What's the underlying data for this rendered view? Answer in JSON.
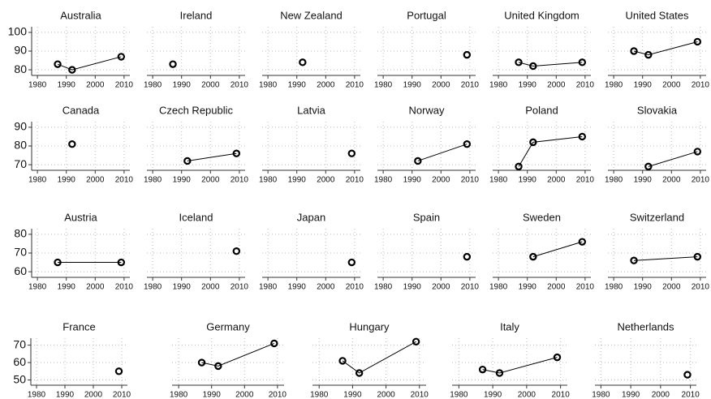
{
  "chart_data": [
    {
      "type": "line",
      "title": "Australia",
      "x": [
        1987,
        1992,
        2009
      ],
      "values": [
        83,
        80,
        87
      ],
      "xlim": [
        1978,
        2012
      ],
      "ylim": [
        77,
        103
      ],
      "xticks": [
        1980,
        1990,
        2000,
        2010
      ],
      "yticks": [
        80,
        90,
        100
      ],
      "grid": true,
      "color": "#000000"
    },
    {
      "type": "line",
      "title": "Ireland",
      "x": [
        1987
      ],
      "values": [
        83
      ],
      "xlim": [
        1978,
        2012
      ],
      "ylim": [
        77,
        103
      ],
      "xticks": [
        1980,
        1990,
        2000,
        2010
      ],
      "yticks": [
        80,
        90,
        100
      ],
      "grid": true,
      "color": "#000000"
    },
    {
      "type": "line",
      "title": "New Zealand",
      "x": [
        1992
      ],
      "values": [
        84
      ],
      "xlim": [
        1978,
        2012
      ],
      "ylim": [
        77,
        103
      ],
      "xticks": [
        1980,
        1990,
        2000,
        2010
      ],
      "yticks": [
        80,
        90,
        100
      ],
      "grid": true,
      "color": "#000000"
    },
    {
      "type": "line",
      "title": "Portugal",
      "x": [
        2009
      ],
      "values": [
        88
      ],
      "xlim": [
        1978,
        2012
      ],
      "ylim": [
        77,
        103
      ],
      "xticks": [
        1980,
        1990,
        2000,
        2010
      ],
      "yticks": [
        80,
        90,
        100
      ],
      "grid": true,
      "color": "#000000"
    },
    {
      "type": "line",
      "title": "United Kingdom",
      "x": [
        1987,
        1992,
        2009
      ],
      "values": [
        84,
        82,
        84
      ],
      "xlim": [
        1978,
        2012
      ],
      "ylim": [
        77,
        103
      ],
      "xticks": [
        1980,
        1990,
        2000,
        2010
      ],
      "yticks": [
        80,
        90,
        100
      ],
      "grid": true,
      "color": "#000000"
    },
    {
      "type": "line",
      "title": "United States",
      "x": [
        1987,
        1992,
        2009
      ],
      "values": [
        90,
        88,
        95
      ],
      "xlim": [
        1978,
        2012
      ],
      "ylim": [
        77,
        103
      ],
      "xticks": [
        1980,
        1990,
        2000,
        2010
      ],
      "yticks": [
        80,
        90,
        100
      ],
      "grid": true,
      "color": "#000000"
    },
    {
      "type": "line",
      "title": "Canada",
      "x": [
        1992
      ],
      "values": [
        81
      ],
      "xlim": [
        1978,
        2012
      ],
      "ylim": [
        67,
        93
      ],
      "xticks": [
        1980,
        1990,
        2000,
        2010
      ],
      "yticks": [
        70,
        80,
        90
      ],
      "grid": true,
      "color": "#000000"
    },
    {
      "type": "line",
      "title": "Czech Republic",
      "x": [
        1992,
        2009
      ],
      "values": [
        72,
        76
      ],
      "xlim": [
        1978,
        2012
      ],
      "ylim": [
        67,
        93
      ],
      "xticks": [
        1980,
        1990,
        2000,
        2010
      ],
      "yticks": [
        70,
        80,
        90
      ],
      "grid": true,
      "color": "#000000"
    },
    {
      "type": "line",
      "title": "Latvia",
      "x": [
        2009
      ],
      "values": [
        76
      ],
      "xlim": [
        1978,
        2012
      ],
      "ylim": [
        67,
        93
      ],
      "xticks": [
        1980,
        1990,
        2000,
        2010
      ],
      "yticks": [
        70,
        80,
        90
      ],
      "grid": true,
      "color": "#000000"
    },
    {
      "type": "line",
      "title": "Norway",
      "x": [
        1992,
        2009
      ],
      "values": [
        72,
        81
      ],
      "xlim": [
        1978,
        2012
      ],
      "ylim": [
        67,
        93
      ],
      "xticks": [
        1980,
        1990,
        2000,
        2010
      ],
      "yticks": [
        70,
        80,
        90
      ],
      "grid": true,
      "color": "#000000"
    },
    {
      "type": "line",
      "title": "Poland",
      "x": [
        1987,
        1992,
        2009
      ],
      "values": [
        69,
        82,
        85
      ],
      "xlim": [
        1978,
        2012
      ],
      "ylim": [
        67,
        93
      ],
      "xticks": [
        1980,
        1990,
        2000,
        2010
      ],
      "yticks": [
        70,
        80,
        90
      ],
      "grid": true,
      "color": "#000000"
    },
    {
      "type": "line",
      "title": "Slovakia",
      "x": [
        1992,
        2009
      ],
      "values": [
        69,
        77
      ],
      "xlim": [
        1978,
        2012
      ],
      "ylim": [
        67,
        93
      ],
      "xticks": [
        1980,
        1990,
        2000,
        2010
      ],
      "yticks": [
        70,
        80,
        90
      ],
      "grid": true,
      "color": "#000000"
    },
    {
      "type": "line",
      "title": "Austria",
      "x": [
        1987,
        2009
      ],
      "values": [
        65,
        65
      ],
      "xlim": [
        1978,
        2012
      ],
      "ylim": [
        57,
        83
      ],
      "xticks": [
        1980,
        1990,
        2000,
        2010
      ],
      "yticks": [
        60,
        70,
        80
      ],
      "grid": true,
      "color": "#000000"
    },
    {
      "type": "line",
      "title": "Iceland",
      "x": [
        2009
      ],
      "values": [
        71
      ],
      "xlim": [
        1978,
        2012
      ],
      "ylim": [
        57,
        83
      ],
      "xticks": [
        1980,
        1990,
        2000,
        2010
      ],
      "yticks": [
        60,
        70,
        80
      ],
      "grid": true,
      "color": "#000000"
    },
    {
      "type": "line",
      "title": "Japan",
      "x": [
        2009
      ],
      "values": [
        65
      ],
      "xlim": [
        1978,
        2012
      ],
      "ylim": [
        57,
        83
      ],
      "xticks": [
        1980,
        1990,
        2000,
        2010
      ],
      "yticks": [
        60,
        70,
        80
      ],
      "grid": true,
      "color": "#000000"
    },
    {
      "type": "line",
      "title": "Spain",
      "x": [
        2009
      ],
      "values": [
        68
      ],
      "xlim": [
        1978,
        2012
      ],
      "ylim": [
        57,
        83
      ],
      "xticks": [
        1980,
        1990,
        2000,
        2010
      ],
      "yticks": [
        60,
        70,
        80
      ],
      "grid": true,
      "color": "#000000"
    },
    {
      "type": "line",
      "title": "Sweden",
      "x": [
        1992,
        2009
      ],
      "values": [
        68,
        76
      ],
      "xlim": [
        1978,
        2012
      ],
      "ylim": [
        57,
        83
      ],
      "xticks": [
        1980,
        1990,
        2000,
        2010
      ],
      "yticks": [
        60,
        70,
        80
      ],
      "grid": true,
      "color": "#000000"
    },
    {
      "type": "line",
      "title": "Switzerland",
      "x": [
        1987,
        2009
      ],
      "values": [
        66,
        68
      ],
      "xlim": [
        1978,
        2012
      ],
      "ylim": [
        57,
        83
      ],
      "xticks": [
        1980,
        1990,
        2000,
        2010
      ],
      "yticks": [
        60,
        70,
        80
      ],
      "grid": true,
      "color": "#000000"
    },
    {
      "type": "line",
      "title": "France",
      "x": [
        2009
      ],
      "values": [
        55
      ],
      "xlim": [
        1978,
        2012
      ],
      "ylim": [
        47,
        74
      ],
      "xticks": [
        1980,
        1990,
        2000,
        2010
      ],
      "yticks": [
        50,
        60,
        70
      ],
      "grid": true,
      "color": "#000000"
    },
    {
      "type": "line",
      "title": "Germany",
      "x": [
        1987,
        1992,
        2009
      ],
      "values": [
        60,
        58,
        71
      ],
      "xlim": [
        1978,
        2012
      ],
      "ylim": [
        47,
        74
      ],
      "xticks": [
        1980,
        1990,
        2000,
        2010
      ],
      "yticks": [
        50,
        60,
        70
      ],
      "grid": true,
      "color": "#000000"
    },
    {
      "type": "line",
      "title": "Hungary",
      "x": [
        1987,
        1992,
        2009
      ],
      "values": [
        61,
        54,
        72
      ],
      "xlim": [
        1978,
        2012
      ],
      "ylim": [
        47,
        74
      ],
      "xticks": [
        1980,
        1990,
        2000,
        2010
      ],
      "yticks": [
        50,
        60,
        70
      ],
      "grid": true,
      "color": "#000000"
    },
    {
      "type": "line",
      "title": "Italy",
      "x": [
        1987,
        1992,
        2009
      ],
      "values": [
        56,
        54,
        63
      ],
      "xlim": [
        1978,
        2012
      ],
      "ylim": [
        47,
        74
      ],
      "xticks": [
        1980,
        1990,
        2000,
        2010
      ],
      "yticks": [
        50,
        60,
        70
      ],
      "grid": true,
      "color": "#000000"
    },
    {
      "type": "line",
      "title": "Netherlands",
      "x": [
        2009
      ],
      "values": [
        53
      ],
      "xlim": [
        1978,
        2012
      ],
      "ylim": [
        47,
        74
      ],
      "xticks": [
        1980,
        1990,
        2000,
        2010
      ],
      "yticks": [
        50,
        60,
        70
      ],
      "grid": true,
      "color": "#000000"
    }
  ]
}
